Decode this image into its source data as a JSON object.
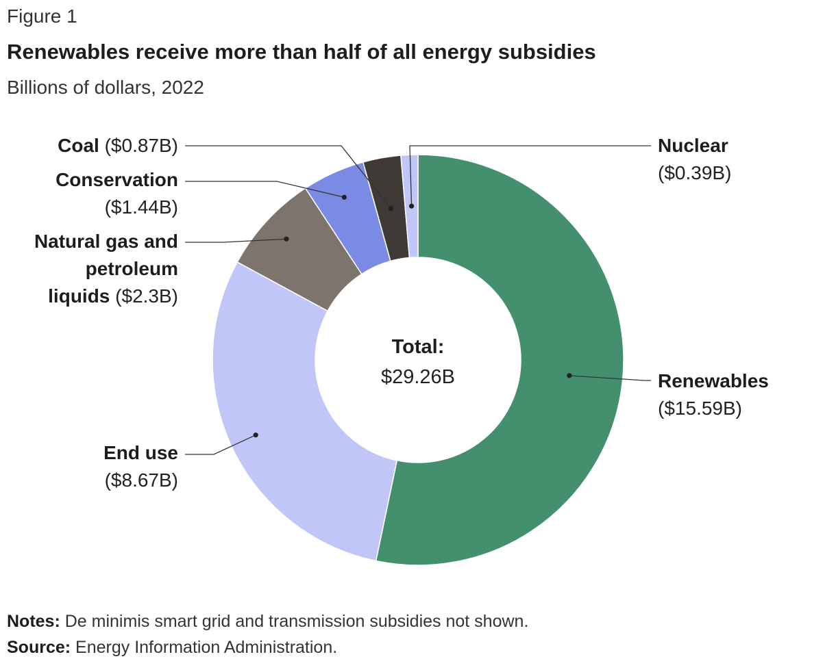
{
  "figure_label": "Figure 1",
  "title": "Renewables receive more than half of all energy subsidies",
  "subtitle": "Billions of dollars, 2022",
  "center": {
    "label": "Total:",
    "value": "$29.26B"
  },
  "notes": {
    "label": "Notes:",
    "text": "De minimis smart grid and transmission subsidies not shown."
  },
  "source": {
    "label": "Source:",
    "text": "Energy Information Administration."
  },
  "chart_data": {
    "type": "pie",
    "variant": "donut",
    "title": "Renewables receive more than half of all energy subsidies",
    "subtitle": "Billions of dollars, 2022",
    "unit": "Billions of dollars",
    "total": 29.26,
    "order": "clockwise from 12 o'clock",
    "slices": [
      {
        "id": "renewables",
        "name": "Renewables",
        "value": 15.59,
        "label_lines": [
          "Renewables"
        ],
        "value_label": "($15.59B)",
        "color": "#438f6e"
      },
      {
        "id": "end-use",
        "name": "End use",
        "value": 8.67,
        "label_lines": [
          "End use"
        ],
        "value_label": "($8.67B)",
        "color": "#c0c6f7"
      },
      {
        "id": "natural-gas",
        "name": "Natural gas and petroleum liquids",
        "value": 2.3,
        "label_lines": [
          "Natural gas and",
          "petroleum",
          "liquids"
        ],
        "value_label": "($2.3B)",
        "color": "#7d746d"
      },
      {
        "id": "conservation",
        "name": "Conservation",
        "value": 1.44,
        "label_lines": [
          "Conservation"
        ],
        "value_label": "($1.44B)",
        "color": "#7b8be3"
      },
      {
        "id": "coal",
        "name": "Coal",
        "value": 0.87,
        "label_lines": [
          "Coal"
        ],
        "value_label": "($0.87B)",
        "color": "#3f3a36"
      },
      {
        "id": "nuclear",
        "name": "Nuclear",
        "value": 0.39,
        "label_lines": [
          "Nuclear"
        ],
        "value_label": "($0.39B)",
        "color": "#c0c6f7"
      }
    ]
  }
}
